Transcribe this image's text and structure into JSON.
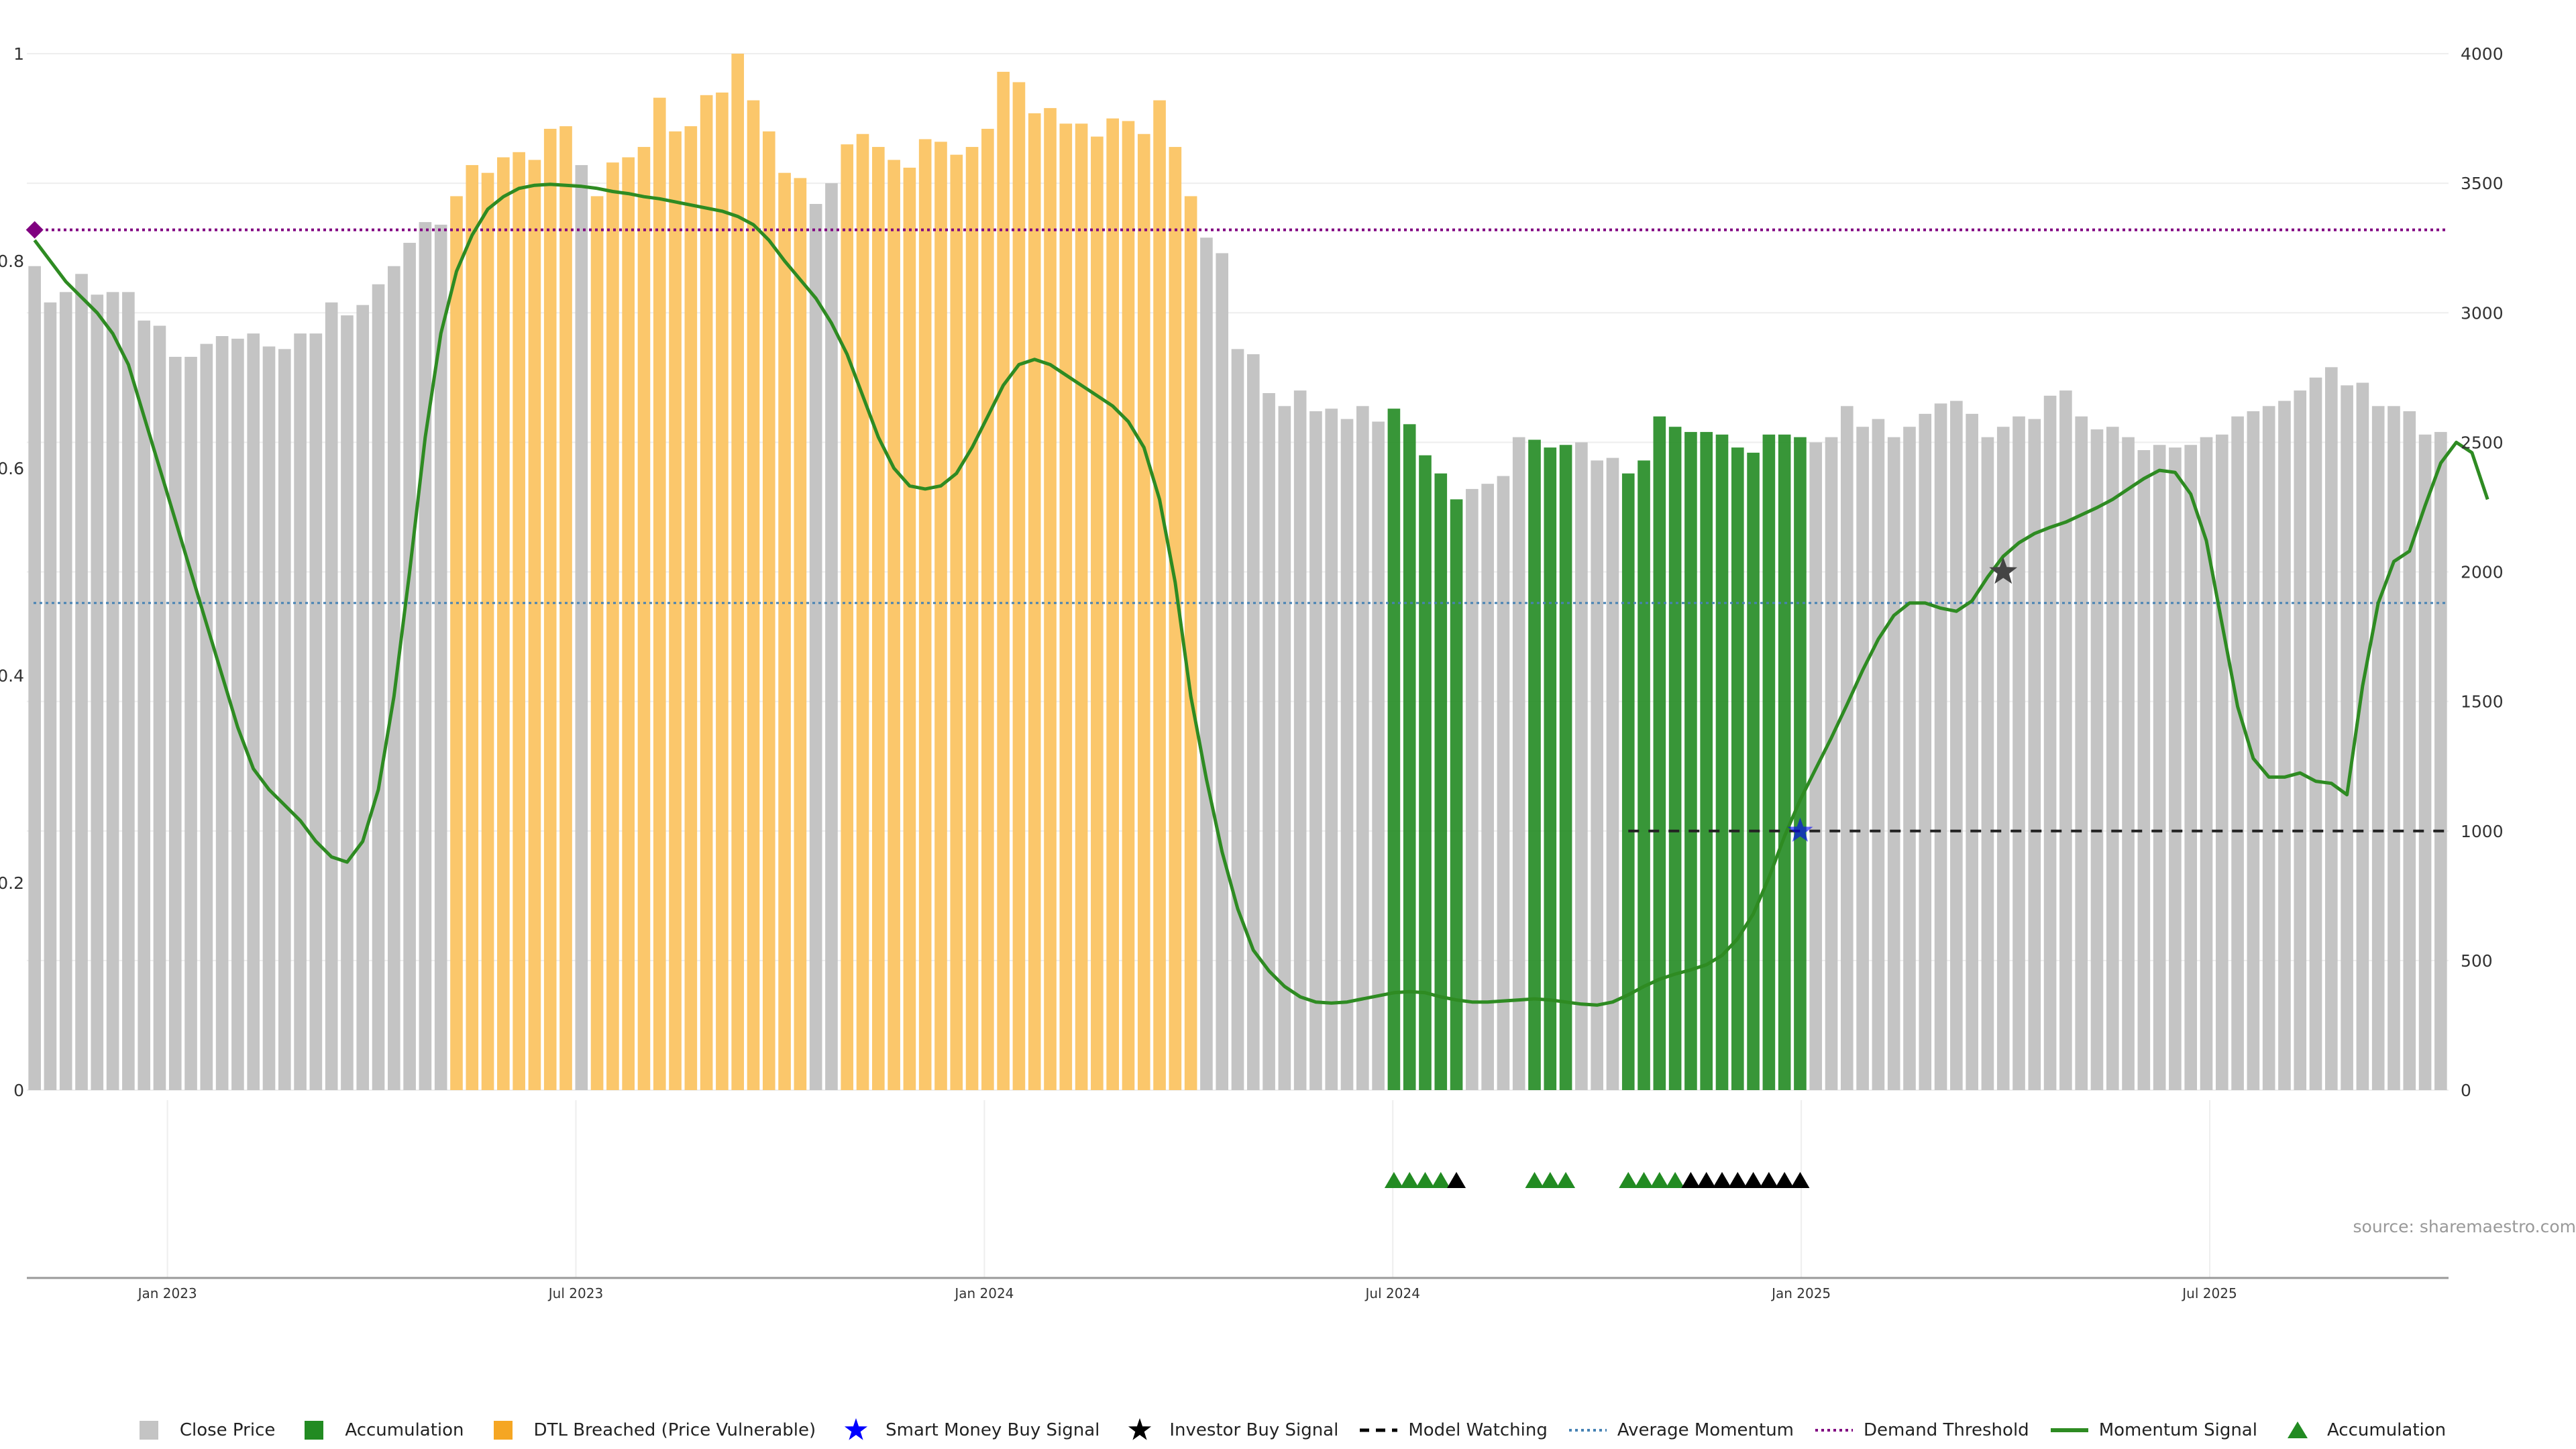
{
  "source_text": "source: sharemaestro.com",
  "colors": {
    "close_price": "#c4c4c4",
    "accumulation": "#228b22",
    "dtl": "#fbc76b",
    "momentum": "#2e8b22",
    "average_momentum": "#4682b4",
    "demand_threshold": "#800080",
    "model_watching": "#222222",
    "investor_star": "#444444",
    "smart_money_star": "#0000ff"
  },
  "legend": [
    {
      "label": "Close Price",
      "icon": "grey-square-icon"
    },
    {
      "label": "Accumulation",
      "icon": "green-square-icon"
    },
    {
      "label": "DTL Breached (Price Vulnerable)",
      "icon": "orange-square-icon"
    },
    {
      "label": "Smart Money Buy Signal",
      "icon": "blue-star-icon"
    },
    {
      "label": "Investor Buy Signal",
      "icon": "black-star-icon"
    },
    {
      "label": "Model Watching",
      "icon": "dashed-line-icon"
    },
    {
      "label": "Average Momentum",
      "icon": "dotted-blue-line-icon"
    },
    {
      "label": "Demand Threshold",
      "icon": "dotted-purple-line-icon"
    },
    {
      "label": "Momentum Signal",
      "icon": "green-line-icon"
    },
    {
      "label": "Accumulation",
      "icon": "green-triangle-icon"
    }
  ],
  "chart_data": {
    "type": "bar",
    "x_tick_labels": [
      "Jan 2023",
      "Jul 2023",
      "Jan 2024",
      "Jul 2024",
      "Jan 2025",
      "Jul 2025"
    ],
    "y_left_ticks": [
      "0",
      "0.2",
      "0.4",
      "0.6",
      "0.8",
      "1"
    ],
    "y_right_ticks": [
      "0",
      "500",
      "1000",
      "1500",
      "2000",
      "2500",
      "3000",
      "3500",
      "4000"
    ],
    "ylim_left": [
      0,
      1
    ],
    "ylim_right": [
      0,
      4000
    ],
    "grid": true,
    "legend_position": "bottom",
    "first_bar_index_tick_jan2023": 9,
    "bars": [
      3180,
      3040,
      3080,
      3150,
      3070,
      3080,
      3080,
      2970,
      2950,
      2830,
      2830,
      2880,
      2910,
      2900,
      2920,
      2870,
      2860,
      2920,
      2920,
      3040,
      2990,
      3030,
      3110,
      3180,
      3270,
      3350,
      3340,
      3450,
      3570,
      3540,
      3600,
      3620,
      3590,
      3710,
      3720,
      3570,
      3450,
      3580,
      3600,
      3640,
      3830,
      3700,
      3720,
      3840,
      3850,
      4000,
      3820,
      3700,
      3540,
      3520,
      3420,
      3500,
      3650,
      3690,
      3640,
      3590,
      3560,
      3670,
      3660,
      3610,
      3640,
      3710,
      3930,
      3890,
      3770,
      3790,
      3730,
      3730,
      3680,
      3750,
      3740,
      3690,
      3820,
      3640,
      3450,
      3290,
      3230,
      2860,
      2840,
      2690,
      2640,
      2700,
      2620,
      2630,
      2590,
      2640,
      2580,
      2630,
      2570,
      2450,
      2380,
      2280,
      2320,
      2340,
      2370,
      2520,
      2510,
      2480,
      2490,
      2500,
      2430,
      2440,
      2380,
      2430,
      2600,
      2560,
      2540,
      2540,
      2530,
      2480,
      2460,
      2530,
      2530,
      2520,
      2500,
      2520,
      2640,
      2560,
      2590,
      2520,
      2560,
      2610,
      2650,
      2660,
      2610,
      2520,
      2560,
      2600,
      2590,
      2680,
      2700,
      2600,
      2550,
      2560,
      2520,
      2470,
      2490,
      2480,
      2490,
      2520,
      2530,
      2600,
      2620,
      2640,
      2660,
      2700,
      2750,
      2790,
      2720,
      2730,
      2640,
      2640,
      2620,
      2530,
      2540
    ],
    "bar_categories": [
      {
        "range": [
          27,
          34
        ],
        "category": "dtl"
      },
      {
        "range": [
          35,
          35
        ],
        "category": "close"
      },
      {
        "range": [
          36,
          49
        ],
        "category": "dtl"
      },
      {
        "range": [
          50,
          51
        ],
        "category": "close"
      },
      {
        "range": [
          52,
          74
        ],
        "category": "dtl"
      },
      {
        "range": [
          87,
          91
        ],
        "category": "accumulation"
      },
      {
        "range": [
          96,
          98
        ],
        "category": "accumulation"
      },
      {
        "range": [
          102,
          113
        ],
        "category": "accumulation"
      }
    ],
    "momentum": [
      0.82,
      0.8,
      0.78,
      0.765,
      0.75,
      0.73,
      0.7,
      0.65,
      0.6,
      0.55,
      0.5,
      0.45,
      0.4,
      0.35,
      0.31,
      0.29,
      0.275,
      0.26,
      0.24,
      0.225,
      0.22,
      0.24,
      0.29,
      0.38,
      0.5,
      0.63,
      0.73,
      0.79,
      0.825,
      0.85,
      0.862,
      0.87,
      0.873,
      0.874,
      0.873,
      0.872,
      0.87,
      0.867,
      0.865,
      0.862,
      0.86,
      0.857,
      0.854,
      0.851,
      0.848,
      0.843,
      0.835,
      0.82,
      0.8,
      0.782,
      0.764,
      0.74,
      0.71,
      0.67,
      0.63,
      0.6,
      0.583,
      0.58,
      0.583,
      0.595,
      0.62,
      0.65,
      0.68,
      0.7,
      0.705,
      0.7,
      0.69,
      0.68,
      0.67,
      0.66,
      0.645,
      0.62,
      0.57,
      0.49,
      0.38,
      0.3,
      0.23,
      0.175,
      0.135,
      0.115,
      0.1,
      0.09,
      0.085,
      0.084,
      0.085,
      0.088,
      0.091,
      0.094,
      0.095,
      0.094,
      0.09,
      0.087,
      0.085,
      0.085,
      0.086,
      0.087,
      0.088,
      0.087,
      0.085,
      0.083,
      0.082,
      0.085,
      0.092,
      0.1,
      0.107,
      0.112,
      0.116,
      0.121,
      0.13,
      0.146,
      0.17,
      0.205,
      0.245,
      0.28,
      0.31,
      0.34,
      0.372,
      0.405,
      0.435,
      0.458,
      0.47,
      0.47,
      0.465,
      0.462,
      0.472,
      0.495,
      0.515,
      0.528,
      0.537,
      0.543,
      0.548,
      0.555,
      0.562,
      0.57,
      0.58,
      0.59,
      0.598,
      0.596,
      0.575,
      0.53,
      0.45,
      0.37,
      0.32,
      0.302,
      0.302,
      0.306,
      0.298,
      0.296,
      0.285,
      0.39,
      0.47,
      0.51,
      0.52,
      0.564,
      0.605,
      0.625,
      0.615,
      0.57
    ],
    "average_momentum_level": 0.47,
    "demand_threshold_level": 0.83,
    "model_watching": {
      "start_index": 102,
      "end_index": 155,
      "level": 0.25
    },
    "demand_marker_index": 0,
    "smart_money_buy": [
      {
        "index": 113,
        "value": 0.25
      }
    ],
    "investor_buy": [
      {
        "index": 126,
        "value": 0.5
      }
    ],
    "signal_triangles": [
      {
        "index": 87,
        "color": "green"
      },
      {
        "index": 88,
        "color": "green"
      },
      {
        "index": 89,
        "color": "green"
      },
      {
        "index": 90,
        "color": "green"
      },
      {
        "index": 91,
        "color": "black"
      },
      {
        "index": 96,
        "color": "green"
      },
      {
        "index": 97,
        "color": "green"
      },
      {
        "index": 98,
        "color": "green"
      },
      {
        "index": 102,
        "color": "green"
      },
      {
        "index": 103,
        "color": "green"
      },
      {
        "index": 104,
        "color": "green"
      },
      {
        "index": 105,
        "color": "green"
      },
      {
        "index": 106,
        "color": "black"
      },
      {
        "index": 107,
        "color": "black"
      },
      {
        "index": 108,
        "color": "black"
      },
      {
        "index": 109,
        "color": "black"
      },
      {
        "index": 110,
        "color": "black"
      },
      {
        "index": 111,
        "color": "black"
      },
      {
        "index": 112,
        "color": "black"
      },
      {
        "index": 113,
        "color": "black"
      }
    ]
  }
}
